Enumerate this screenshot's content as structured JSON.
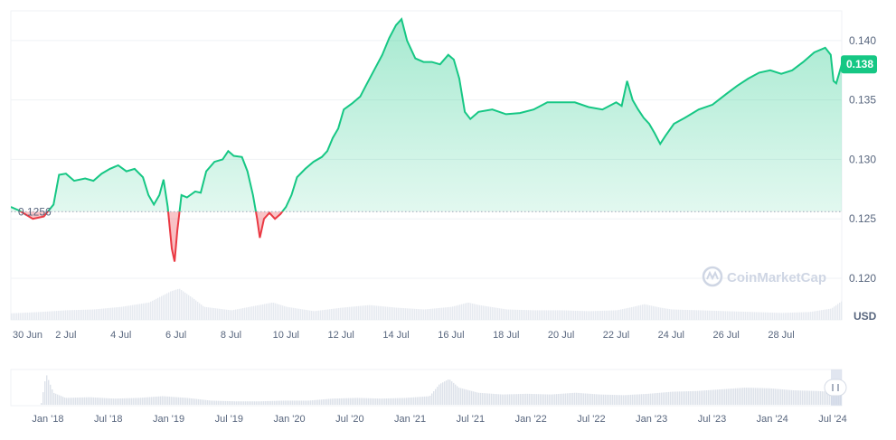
{
  "chart_data": {
    "type": "area",
    "currency_label": "USD",
    "baseline_value": 0.1256,
    "baseline_label": "0.1256",
    "current_value": 0.138,
    "current_label": "0.138",
    "watermark": "CoinMarketCap",
    "ylim": [
      0.1165,
      0.1425
    ],
    "y_ticks": [
      {
        "value": 0.12,
        "label": "0.120"
      },
      {
        "value": 0.125,
        "label": "0.125"
      },
      {
        "value": 0.13,
        "label": "0.130"
      },
      {
        "value": 0.135,
        "label": "0.135"
      },
      {
        "value": 0.14,
        "label": "0.140"
      }
    ],
    "x_range": [
      0,
      30.2
    ],
    "x_ticks": [
      {
        "value": 0,
        "label": "30 Jun"
      },
      {
        "value": 2,
        "label": "2 Jul"
      },
      {
        "value": 4,
        "label": "4 Jul"
      },
      {
        "value": 6,
        "label": "6 Jul"
      },
      {
        "value": 8,
        "label": "8 Jul"
      },
      {
        "value": 10,
        "label": "10 Jul"
      },
      {
        "value": 12,
        "label": "12 Jul"
      },
      {
        "value": 14,
        "label": "14 Jul"
      },
      {
        "value": 16,
        "label": "16 Jul"
      },
      {
        "value": 18,
        "label": "18 Jul"
      },
      {
        "value": 20,
        "label": "20 Jul"
      },
      {
        "value": 22,
        "label": "22 Jul"
      },
      {
        "value": 24,
        "label": "24 Jul"
      },
      {
        "value": 26,
        "label": "26 Jul"
      },
      {
        "value": 28,
        "label": "28 Jul"
      }
    ],
    "colors": {
      "up": "#16c784",
      "down": "#ea3943",
      "grid": "#eff2f5",
      "text": "#58667e"
    },
    "series": [
      {
        "points": [
          [
            0.0,
            0.126
          ],
          [
            0.3,
            0.1257
          ],
          [
            0.8,
            0.125
          ],
          [
            1.2,
            0.1252
          ],
          [
            1.55,
            0.1262
          ],
          [
            1.75,
            0.1287
          ],
          [
            2.0,
            0.1288
          ],
          [
            2.3,
            0.1282
          ],
          [
            2.7,
            0.1284
          ],
          [
            3.0,
            0.1282
          ],
          [
            3.3,
            0.1288
          ],
          [
            3.6,
            0.1292
          ],
          [
            3.9,
            0.1295
          ],
          [
            4.2,
            0.129
          ],
          [
            4.5,
            0.1292
          ],
          [
            4.8,
            0.1285
          ],
          [
            5.0,
            0.127
          ],
          [
            5.2,
            0.1262
          ],
          [
            5.4,
            0.127
          ],
          [
            5.55,
            0.1283
          ],
          [
            5.7,
            0.126
          ],
          [
            5.85,
            0.1225
          ],
          [
            5.95,
            0.1214
          ],
          [
            6.05,
            0.124
          ],
          [
            6.2,
            0.127
          ],
          [
            6.4,
            0.1268
          ],
          [
            6.7,
            0.1273
          ],
          [
            6.9,
            0.1272
          ],
          [
            7.1,
            0.129
          ],
          [
            7.4,
            0.1298
          ],
          [
            7.7,
            0.13
          ],
          [
            7.9,
            0.1307
          ],
          [
            8.1,
            0.1303
          ],
          [
            8.4,
            0.1302
          ],
          [
            8.6,
            0.129
          ],
          [
            8.8,
            0.127
          ],
          [
            8.95,
            0.125
          ],
          [
            9.05,
            0.1234
          ],
          [
            9.2,
            0.125
          ],
          [
            9.4,
            0.1255
          ],
          [
            9.6,
            0.125
          ],
          [
            9.8,
            0.1254
          ],
          [
            10.0,
            0.126
          ],
          [
            10.2,
            0.127
          ],
          [
            10.4,
            0.1285
          ],
          [
            10.7,
            0.1292
          ],
          [
            11.0,
            0.1298
          ],
          [
            11.3,
            0.1302
          ],
          [
            11.5,
            0.1307
          ],
          [
            11.7,
            0.1318
          ],
          [
            11.9,
            0.1326
          ],
          [
            12.1,
            0.1342
          ],
          [
            12.4,
            0.1347
          ],
          [
            12.7,
            0.1353
          ],
          [
            12.9,
            0.1362
          ],
          [
            13.2,
            0.1375
          ],
          [
            13.5,
            0.1388
          ],
          [
            13.75,
            0.1402
          ],
          [
            14.0,
            0.1413
          ],
          [
            14.2,
            0.1418
          ],
          [
            14.4,
            0.14
          ],
          [
            14.7,
            0.1385
          ],
          [
            15.0,
            0.1382
          ],
          [
            15.3,
            0.1382
          ],
          [
            15.6,
            0.138
          ],
          [
            15.9,
            0.1388
          ],
          [
            16.1,
            0.1384
          ],
          [
            16.3,
            0.1368
          ],
          [
            16.5,
            0.134
          ],
          [
            16.7,
            0.1334
          ],
          [
            17.0,
            0.134
          ],
          [
            17.5,
            0.1342
          ],
          [
            18.0,
            0.1338
          ],
          [
            18.5,
            0.1339
          ],
          [
            19.0,
            0.1342
          ],
          [
            19.5,
            0.1348
          ],
          [
            20.0,
            0.1348
          ],
          [
            20.5,
            0.1348
          ],
          [
            21.0,
            0.1344
          ],
          [
            21.5,
            0.1342
          ],
          [
            22.0,
            0.1348
          ],
          [
            22.2,
            0.1345
          ],
          [
            22.4,
            0.1366
          ],
          [
            22.6,
            0.135
          ],
          [
            22.8,
            0.1342
          ],
          [
            23.0,
            0.1335
          ],
          [
            23.2,
            0.133
          ],
          [
            23.4,
            0.1322
          ],
          [
            23.6,
            0.1313
          ],
          [
            23.8,
            0.132
          ],
          [
            24.1,
            0.133
          ],
          [
            24.5,
            0.1335
          ],
          [
            25.0,
            0.1342
          ],
          [
            25.5,
            0.1346
          ],
          [
            26.0,
            0.1355
          ],
          [
            26.4,
            0.1362
          ],
          [
            26.8,
            0.1368
          ],
          [
            27.2,
            0.1373
          ],
          [
            27.6,
            0.1375
          ],
          [
            28.0,
            0.1372
          ],
          [
            28.4,
            0.1375
          ],
          [
            28.8,
            0.1382
          ],
          [
            29.2,
            0.139
          ],
          [
            29.6,
            0.1394
          ],
          [
            29.8,
            0.1388
          ],
          [
            29.9,
            0.1366
          ],
          [
            30.0,
            0.1364
          ],
          [
            30.1,
            0.1372
          ],
          [
            30.2,
            0.138
          ]
        ]
      }
    ],
    "volume": [
      [
        0,
        0.15
      ],
      [
        1,
        0.18
      ],
      [
        2,
        0.22
      ],
      [
        3,
        0.24
      ],
      [
        4,
        0.3
      ],
      [
        5,
        0.4
      ],
      [
        5.8,
        0.66
      ],
      [
        6.1,
        0.72
      ],
      [
        6.6,
        0.5
      ],
      [
        7,
        0.3
      ],
      [
        8,
        0.22
      ],
      [
        9,
        0.34
      ],
      [
        9.5,
        0.4
      ],
      [
        10,
        0.3
      ],
      [
        11,
        0.2
      ],
      [
        12,
        0.28
      ],
      [
        13,
        0.34
      ],
      [
        14,
        0.28
      ],
      [
        15,
        0.24
      ],
      [
        16,
        0.3
      ],
      [
        16.6,
        0.4
      ],
      [
        17,
        0.34
      ],
      [
        18,
        0.24
      ],
      [
        19,
        0.22
      ],
      [
        20,
        0.22
      ],
      [
        21,
        0.2
      ],
      [
        22,
        0.22
      ],
      [
        22.6,
        0.3
      ],
      [
        23,
        0.36
      ],
      [
        23.6,
        0.28
      ],
      [
        24,
        0.24
      ],
      [
        25,
        0.22
      ],
      [
        26,
        0.2
      ],
      [
        27,
        0.18
      ],
      [
        28,
        0.16
      ],
      [
        29,
        0.18
      ],
      [
        29.8,
        0.26
      ],
      [
        30.2,
        0.44
      ]
    ]
  },
  "navigator": {
    "labels": [
      "Jan '18",
      "Jul '18",
      "Jan '19",
      "Jul '19",
      "Jan '20",
      "Jul '20",
      "Jan '21",
      "Jul '21",
      "Jan '22",
      "Jul '22",
      "Jan '23",
      "Jul '23",
      "Jan '24",
      "Jul '24"
    ],
    "volume": [
      [
        0,
        0.05
      ],
      [
        0.2,
        0.9
      ],
      [
        0.5,
        0.35
      ],
      [
        1,
        0.2
      ],
      [
        2,
        0.22
      ],
      [
        3,
        0.18
      ],
      [
        4,
        0.2
      ],
      [
        5,
        0.25
      ],
      [
        6,
        0.2
      ],
      [
        7,
        0.12
      ],
      [
        8,
        0.1
      ],
      [
        9,
        0.1
      ],
      [
        10,
        0.12
      ],
      [
        11,
        0.12
      ],
      [
        12,
        0.18
      ],
      [
        13,
        0.2
      ],
      [
        14,
        0.18
      ],
      [
        15,
        0.2
      ],
      [
        16,
        0.25
      ],
      [
        16.4,
        0.6
      ],
      [
        16.8,
        0.75
      ],
      [
        17.2,
        0.5
      ],
      [
        18,
        0.35
      ],
      [
        19,
        0.3
      ],
      [
        20,
        0.32
      ],
      [
        21,
        0.3
      ],
      [
        22,
        0.35
      ],
      [
        23,
        0.3
      ],
      [
        24,
        0.28
      ],
      [
        25,
        0.32
      ],
      [
        26,
        0.38
      ],
      [
        27,
        0.4
      ],
      [
        28,
        0.45
      ],
      [
        29,
        0.5
      ],
      [
        30,
        0.48
      ],
      [
        31,
        0.42
      ],
      [
        32,
        0.4
      ],
      [
        33,
        0.35
      ]
    ]
  }
}
